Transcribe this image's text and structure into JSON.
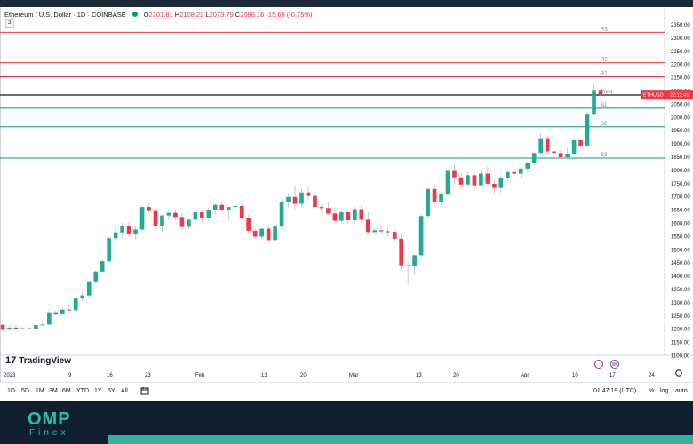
{
  "header": {
    "symbol": "Ethereum / U.S. Dollar · 1D · COINBASE",
    "open_label": "O",
    "open": "2101.81",
    "high_label": "H",
    "high": "2108.22",
    "low_label": "L",
    "low": "2073.79",
    "close_label": "C",
    "close": "2086.16",
    "change": "-15.69 (-0.75%)",
    "indicator_count": "3"
  },
  "price_axis": {
    "ticks": [
      "2350.00",
      "2300.00",
      "2250.00",
      "2200.00",
      "2150.00",
      "2100.00",
      "2050.00",
      "2000.00",
      "1950.00",
      "1900.00",
      "1850.00",
      "1800.00",
      "1750.00",
      "1700.00",
      "1650.00",
      "1600.00",
      "1550.00",
      "1500.00",
      "1450.00",
      "1400.00",
      "1350.00",
      "1300.00",
      "1250.00",
      "1200.00",
      "1150.00",
      "1100.00"
    ],
    "current_symbol": "ETHUSD",
    "current_time": "22:12:41"
  },
  "time_axis": {
    "labels": [
      "2023",
      "9",
      "16",
      "23",
      "Feb",
      "13",
      "20",
      "Mar",
      "13",
      "20",
      "Apr",
      "10",
      "17",
      "24"
    ]
  },
  "levels": [
    {
      "name": "R3",
      "price": 2320,
      "color": "#f23645"
    },
    {
      "name": "R2",
      "price": 2205,
      "color": "#f23645"
    },
    {
      "name": "R1",
      "price": 2152,
      "color": "#f23645"
    },
    {
      "name": "Pivot",
      "price": 2083,
      "color": "#131722"
    },
    {
      "name": "S1",
      "price": 2033,
      "color": "#089981"
    },
    {
      "name": "S2",
      "price": 1963,
      "color": "#089981"
    },
    {
      "name": "S3",
      "price": 1845,
      "color": "#089981"
    }
  ],
  "chart_data": {
    "type": "candlestick",
    "ylim": [
      1100,
      2375
    ],
    "candles": [
      {
        "o": 1215,
        "h": 1222,
        "l": 1190,
        "c": 1196
      },
      {
        "o": 1197,
        "h": 1213,
        "l": 1193,
        "c": 1204
      },
      {
        "o": 1204,
        "h": 1211,
        "l": 1195,
        "c": 1200
      },
      {
        "o": 1200,
        "h": 1208,
        "l": 1195,
        "c": 1202
      },
      {
        "o": 1202,
        "h": 1206,
        "l": 1198,
        "c": 1200
      },
      {
        "o": 1200,
        "h": 1218,
        "l": 1196,
        "c": 1214
      },
      {
        "o": 1214,
        "h": 1222,
        "l": 1210,
        "c": 1216
      },
      {
        "o": 1216,
        "h": 1266,
        "l": 1212,
        "c": 1262
      },
      {
        "o": 1262,
        "h": 1268,
        "l": 1250,
        "c": 1254
      },
      {
        "o": 1254,
        "h": 1280,
        "l": 1250,
        "c": 1272
      },
      {
        "o": 1272,
        "h": 1290,
        "l": 1262,
        "c": 1270
      },
      {
        "o": 1270,
        "h": 1320,
        "l": 1266,
        "c": 1314
      },
      {
        "o": 1314,
        "h": 1342,
        "l": 1305,
        "c": 1326
      },
      {
        "o": 1326,
        "h": 1382,
        "l": 1320,
        "c": 1376
      },
      {
        "o": 1376,
        "h": 1420,
        "l": 1370,
        "c": 1416
      },
      {
        "o": 1416,
        "h": 1462,
        "l": 1408,
        "c": 1455
      },
      {
        "o": 1455,
        "h": 1548,
        "l": 1450,
        "c": 1542
      },
      {
        "o": 1542,
        "h": 1582,
        "l": 1530,
        "c": 1564
      },
      {
        "o": 1564,
        "h": 1600,
        "l": 1545,
        "c": 1590
      },
      {
        "o": 1590,
        "h": 1605,
        "l": 1548,
        "c": 1556
      },
      {
        "o": 1556,
        "h": 1588,
        "l": 1540,
        "c": 1575
      },
      {
        "o": 1575,
        "h": 1668,
        "l": 1566,
        "c": 1660
      },
      {
        "o": 1660,
        "h": 1672,
        "l": 1640,
        "c": 1645
      },
      {
        "o": 1645,
        "h": 1650,
        "l": 1580,
        "c": 1588
      },
      {
        "o": 1588,
        "h": 1632,
        "l": 1565,
        "c": 1628
      },
      {
        "o": 1628,
        "h": 1652,
        "l": 1610,
        "c": 1638
      },
      {
        "o": 1638,
        "h": 1650,
        "l": 1608,
        "c": 1622
      },
      {
        "o": 1622,
        "h": 1636,
        "l": 1580,
        "c": 1585
      },
      {
        "o": 1585,
        "h": 1615,
        "l": 1578,
        "c": 1612
      },
      {
        "o": 1612,
        "h": 1648,
        "l": 1600,
        "c": 1640
      },
      {
        "o": 1640,
        "h": 1648,
        "l": 1602,
        "c": 1618
      },
      {
        "o": 1618,
        "h": 1658,
        "l": 1610,
        "c": 1650
      },
      {
        "o": 1650,
        "h": 1672,
        "l": 1632,
        "c": 1668
      },
      {
        "o": 1668,
        "h": 1676,
        "l": 1640,
        "c": 1648
      },
      {
        "o": 1648,
        "h": 1660,
        "l": 1610,
        "c": 1660
      },
      {
        "o": 1660,
        "h": 1670,
        "l": 1640,
        "c": 1664
      },
      {
        "o": 1664,
        "h": 1672,
        "l": 1612,
        "c": 1620
      },
      {
        "o": 1620,
        "h": 1630,
        "l": 1560,
        "c": 1570
      },
      {
        "o": 1570,
        "h": 1580,
        "l": 1540,
        "c": 1548
      },
      {
        "o": 1548,
        "h": 1580,
        "l": 1540,
        "c": 1578
      },
      {
        "o": 1578,
        "h": 1588,
        "l": 1530,
        "c": 1535
      },
      {
        "o": 1535,
        "h": 1590,
        "l": 1530,
        "c": 1586
      },
      {
        "o": 1586,
        "h": 1690,
        "l": 1580,
        "c": 1678
      },
      {
        "o": 1678,
        "h": 1712,
        "l": 1660,
        "c": 1698
      },
      {
        "o": 1698,
        "h": 1740,
        "l": 1650,
        "c": 1672
      },
      {
        "o": 1672,
        "h": 1730,
        "l": 1660,
        "c": 1715
      },
      {
        "o": 1715,
        "h": 1742,
        "l": 1690,
        "c": 1702
      },
      {
        "o": 1702,
        "h": 1722,
        "l": 1650,
        "c": 1660
      },
      {
        "o": 1660,
        "h": 1672,
        "l": 1640,
        "c": 1656
      },
      {
        "o": 1656,
        "h": 1680,
        "l": 1630,
        "c": 1636
      },
      {
        "o": 1636,
        "h": 1660,
        "l": 1600,
        "c": 1608
      },
      {
        "o": 1608,
        "h": 1645,
        "l": 1600,
        "c": 1640
      },
      {
        "o": 1640,
        "h": 1650,
        "l": 1598,
        "c": 1610
      },
      {
        "o": 1610,
        "h": 1660,
        "l": 1600,
        "c": 1652
      },
      {
        "o": 1652,
        "h": 1665,
        "l": 1600,
        "c": 1612
      },
      {
        "o": 1612,
        "h": 1640,
        "l": 1560,
        "c": 1565
      },
      {
        "o": 1565,
        "h": 1580,
        "l": 1560,
        "c": 1572
      },
      {
        "o": 1572,
        "h": 1588,
        "l": 1558,
        "c": 1568
      },
      {
        "o": 1568,
        "h": 1582,
        "l": 1550,
        "c": 1566
      },
      {
        "o": 1566,
        "h": 1574,
        "l": 1530,
        "c": 1540
      },
      {
        "o": 1540,
        "h": 1560,
        "l": 1420,
        "c": 1440
      },
      {
        "o": 1440,
        "h": 1452,
        "l": 1370,
        "c": 1438
      },
      {
        "o": 1438,
        "h": 1482,
        "l": 1405,
        "c": 1478
      },
      {
        "o": 1478,
        "h": 1632,
        "l": 1470,
        "c": 1626
      },
      {
        "o": 1626,
        "h": 1735,
        "l": 1618,
        "c": 1728
      },
      {
        "o": 1728,
        "h": 1745,
        "l": 1660,
        "c": 1680
      },
      {
        "o": 1680,
        "h": 1715,
        "l": 1668,
        "c": 1710
      },
      {
        "o": 1710,
        "h": 1802,
        "l": 1700,
        "c": 1796
      },
      {
        "o": 1796,
        "h": 1822,
        "l": 1738,
        "c": 1772
      },
      {
        "o": 1772,
        "h": 1790,
        "l": 1728,
        "c": 1745
      },
      {
        "o": 1745,
        "h": 1792,
        "l": 1740,
        "c": 1780
      },
      {
        "o": 1780,
        "h": 1798,
        "l": 1718,
        "c": 1742
      },
      {
        "o": 1742,
        "h": 1800,
        "l": 1738,
        "c": 1786
      },
      {
        "o": 1786,
        "h": 1812,
        "l": 1740,
        "c": 1748
      },
      {
        "o": 1748,
        "h": 1760,
        "l": 1712,
        "c": 1732
      },
      {
        "o": 1732,
        "h": 1778,
        "l": 1715,
        "c": 1770
      },
      {
        "o": 1770,
        "h": 1800,
        "l": 1758,
        "c": 1792
      },
      {
        "o": 1792,
        "h": 1802,
        "l": 1770,
        "c": 1786
      },
      {
        "o": 1786,
        "h": 1810,
        "l": 1768,
        "c": 1805
      },
      {
        "o": 1805,
        "h": 1832,
        "l": 1790,
        "c": 1825
      },
      {
        "o": 1825,
        "h": 1868,
        "l": 1815,
        "c": 1864
      },
      {
        "o": 1864,
        "h": 1938,
        "l": 1856,
        "c": 1920
      },
      {
        "o": 1920,
        "h": 1930,
        "l": 1858,
        "c": 1870
      },
      {
        "o": 1870,
        "h": 1875,
        "l": 1845,
        "c": 1864
      },
      {
        "o": 1864,
        "h": 1874,
        "l": 1840,
        "c": 1848
      },
      {
        "o": 1848,
        "h": 1882,
        "l": 1840,
        "c": 1862
      },
      {
        "o": 1862,
        "h": 1920,
        "l": 1856,
        "c": 1912
      },
      {
        "o": 1912,
        "h": 1918,
        "l": 1880,
        "c": 1892
      },
      {
        "o": 1892,
        "h": 2020,
        "l": 1886,
        "c": 2012
      },
      {
        "o": 2012,
        "h": 2128,
        "l": 2004,
        "c": 2102
      },
      {
        "o": 2102,
        "h": 2108,
        "l": 2074,
        "c": 2086
      }
    ]
  },
  "branding": {
    "tradingview": "TradingView",
    "tradingview_mark": "17",
    "logo_main": "OMP",
    "logo_sub": "Finex"
  },
  "bottombar": {
    "timeframes": [
      "1D",
      "5D",
      "1M",
      "3M",
      "6M",
      "YTD",
      "1Y",
      "5Y",
      "All"
    ],
    "clock": "01:47:19 (UTC)",
    "percent": "%",
    "log": "log",
    "auto": "auto"
  },
  "colors": {
    "up": "#22ab94",
    "down": "#f23645"
  }
}
